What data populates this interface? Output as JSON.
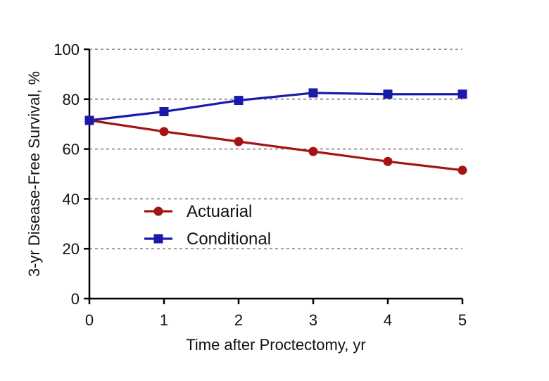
{
  "chart_data": {
    "type": "line",
    "title": "",
    "xlabel": "Time after Proctectomy, yr",
    "ylabel": "3-yr Disease-Free Survival, %",
    "x": [
      0,
      1,
      2,
      3,
      4,
      5
    ],
    "xlim": [
      0,
      5
    ],
    "ylim": [
      0,
      100
    ],
    "x_ticks": [
      "0",
      "1",
      "2",
      "3",
      "4",
      "5"
    ],
    "y_ticks": [
      "0",
      "20",
      "40",
      "60",
      "80",
      "100"
    ],
    "grid": "horizontal dashed",
    "legend_position": "center-left",
    "series": [
      {
        "name": "Actuarial",
        "marker": "circle",
        "color": "#a31515",
        "values": [
          71.5,
          67,
          63,
          59,
          55,
          51.5
        ]
      },
      {
        "name": "Conditional",
        "marker": "square",
        "color": "#1a1aa8",
        "values": [
          71.5,
          75,
          79.5,
          82.5,
          82,
          82
        ]
      }
    ]
  }
}
